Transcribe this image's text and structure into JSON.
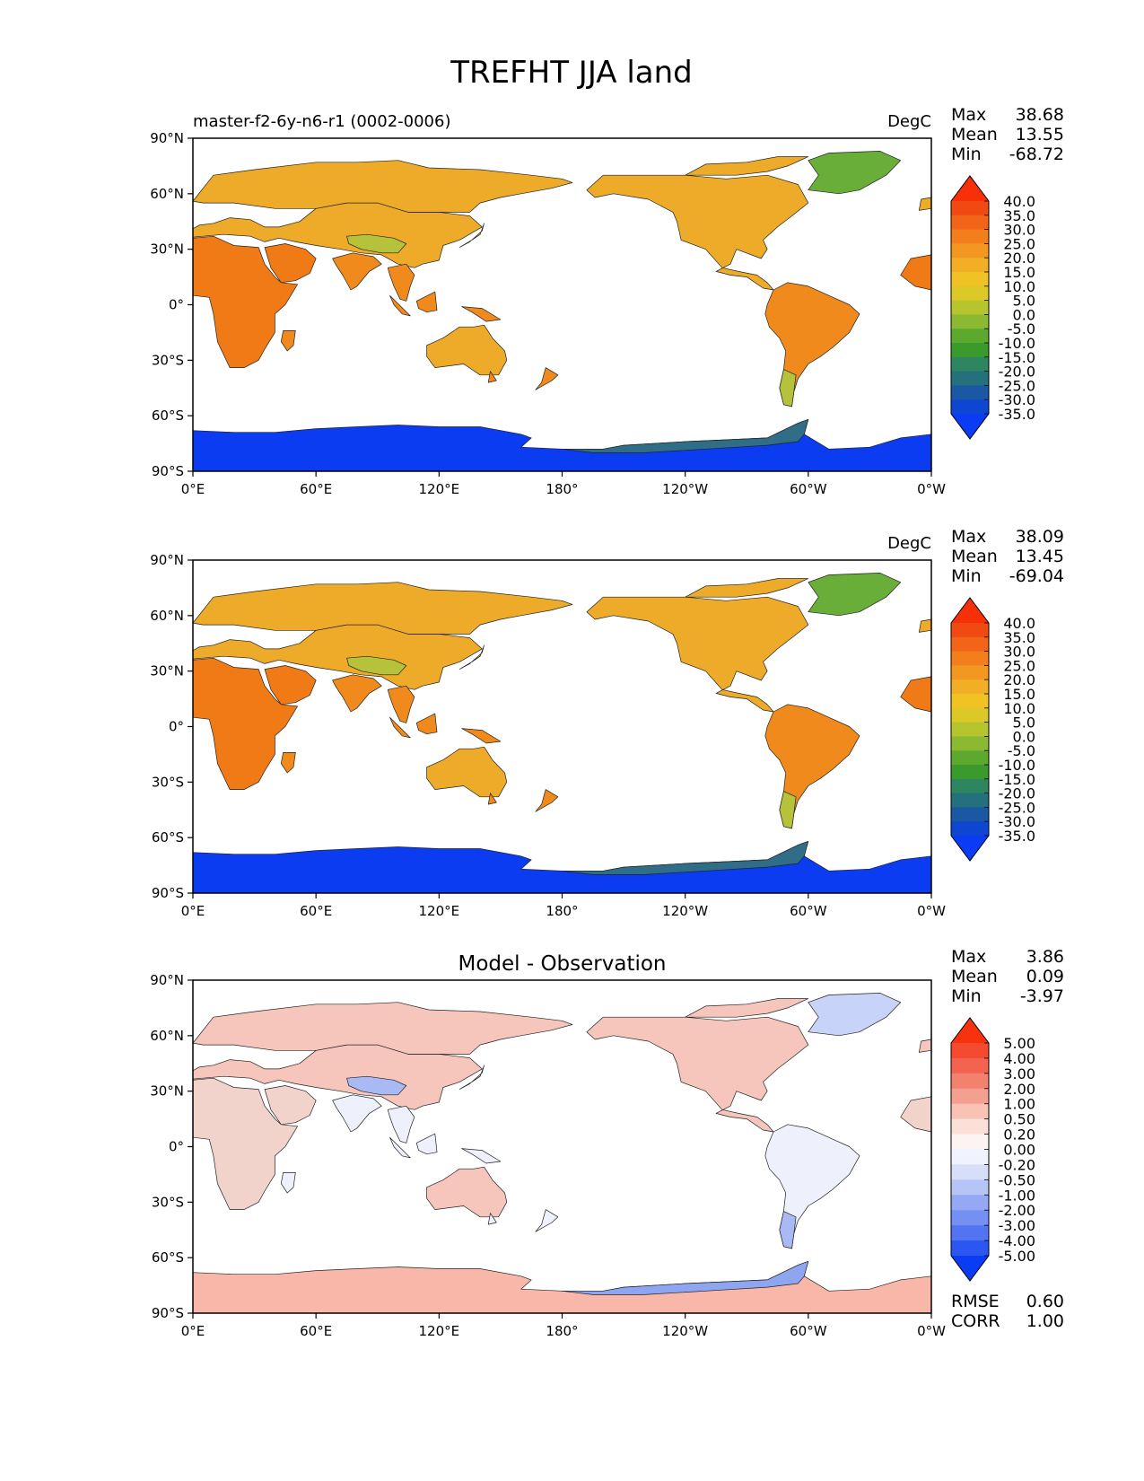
{
  "figure": {
    "title": "TREFHT JJA land"
  },
  "axis_labels": {
    "lat": [
      "90°N",
      "60°N",
      "30°N",
      "0°",
      "30°S",
      "60°S",
      "90°S"
    ],
    "lon": [
      "0°E",
      "60°E",
      "120°E",
      "180°",
      "120°W",
      "60°W",
      "0°W"
    ]
  },
  "panels": [
    {
      "left_title": "master-f2-6y-n6-r1 (0002-0006)",
      "center_title": "",
      "units": "DegC",
      "stats": [
        {
          "label": "Max",
          "value": "38.68"
        },
        {
          "label": "Mean",
          "value": "13.55"
        },
        {
          "label": "Min",
          "value": "-68.72"
        }
      ],
      "colorbar": "abs",
      "land_colors": {
        "nh": "#eeab2a",
        "tropic": "#f08a1c",
        "desert": "#f07a16",
        "plateau": "#b5c23a",
        "greenland": "#6aae3a",
        "antarctic": "#0b3cf2",
        "antarctic_edge": "#2f6e86"
      }
    },
    {
      "left_title": "",
      "center_title": "",
      "units": "DegC",
      "stats": [
        {
          "label": "Max",
          "value": "38.09"
        },
        {
          "label": "Mean",
          "value": "13.45"
        },
        {
          "label": "Min",
          "value": "-69.04"
        }
      ],
      "colorbar": "abs",
      "land_colors": {
        "nh": "#eeab2a",
        "tropic": "#f08a1c",
        "desert": "#f07a16",
        "plateau": "#b5c23a",
        "greenland": "#6aae3a",
        "antarctic": "#0b3cf2",
        "antarctic_edge": "#2f6e86"
      }
    },
    {
      "left_title": "",
      "center_title": "Model - Observation",
      "units": "",
      "stats": [
        {
          "label": "Max",
          "value": "3.86"
        },
        {
          "label": "Mean",
          "value": "0.09"
        },
        {
          "label": "Min",
          "value": "-3.97"
        }
      ],
      "colorbar": "diff",
      "metrics": [
        {
          "label": "RMSE",
          "value": "0.60"
        },
        {
          "label": "CORR",
          "value": "1.00"
        }
      ],
      "land_colors": {
        "nh": "#f6c6bd",
        "tropic": "#eef0fb",
        "desert": "#f2d3cc",
        "plateau": "#a9b9f4",
        "greenland": "#c7d3f8",
        "antarctic": "#f8b7a8",
        "antarctic_edge": "#8ea6f2"
      }
    }
  ],
  "colorbars": {
    "abs": {
      "labels": [
        "40.0",
        "35.0",
        "30.0",
        "25.0",
        "20.0",
        "15.0",
        "10.0",
        "5.0",
        "0.0",
        "-5.0",
        "-10.0",
        "-15.0",
        "-20.0",
        "-25.0",
        "-30.0",
        "-35.0"
      ],
      "colors": [
        "#f8300a",
        "#f04a12",
        "#f26418",
        "#f27e1c",
        "#f29820",
        "#f2ae24",
        "#f1c224",
        "#dcc928",
        "#b6c42e",
        "#8bb932",
        "#5da92e",
        "#3b9a2c",
        "#2e8660",
        "#24707c",
        "#1a58a4",
        "#0e46d2",
        "#0a3cf5"
      ]
    },
    "diff": {
      "labels": [
        "5.00",
        "4.00",
        "3.00",
        "2.00",
        "1.00",
        "0.50",
        "0.20",
        "0.00",
        "-0.20",
        "-0.50",
        "-1.00",
        "-2.00",
        "-3.00",
        "-4.00",
        "-5.00"
      ],
      "colors": [
        "#f8320c",
        "#f44a30",
        "#f26450",
        "#f2826e",
        "#f4a090",
        "#f8c2b4",
        "#fbe0d8",
        "#fbf4f2",
        "#f0f2fd",
        "#d6def9",
        "#b6c4f6",
        "#94a8f4",
        "#7490f2",
        "#5274f2",
        "#2c56f2",
        "#0a3cf5"
      ]
    }
  },
  "chart_data": [
    {
      "type": "heatmap",
      "title": "TREFHT JJA land",
      "subtitle": "master-f2-6y-n6-r1 (0002-0006)",
      "units": "DegC",
      "lon_ticks": [
        "0°E",
        "60°E",
        "120°E",
        "180°",
        "120°W",
        "60°W",
        "0°W"
      ],
      "lat_ticks": [
        "90°N",
        "60°N",
        "30°N",
        "0°",
        "30°S",
        "60°S",
        "90°S"
      ],
      "stats": {
        "max": 38.68,
        "mean": 13.55,
        "min": -68.72
      },
      "levels": [
        -35,
        -30,
        -25,
        -20,
        -15,
        -10,
        -5,
        0,
        5,
        10,
        15,
        20,
        25,
        30,
        35,
        40
      ]
    },
    {
      "type": "heatmap",
      "units": "DegC",
      "lon_ticks": [
        "0°E",
        "60°E",
        "120°E",
        "180°",
        "120°W",
        "60°W",
        "0°W"
      ],
      "lat_ticks": [
        "90°N",
        "60°N",
        "30°N",
        "0°",
        "30°S",
        "60°S",
        "90°S"
      ],
      "stats": {
        "max": 38.09,
        "mean": 13.45,
        "min": -69.04
      },
      "levels": [
        -35,
        -30,
        -25,
        -20,
        -15,
        -10,
        -5,
        0,
        5,
        10,
        15,
        20,
        25,
        30,
        35,
        40
      ]
    },
    {
      "type": "heatmap",
      "title": "Model - Observation",
      "lon_ticks": [
        "0°E",
        "60°E",
        "120°E",
        "180°",
        "120°W",
        "60°W",
        "0°W"
      ],
      "lat_ticks": [
        "90°N",
        "60°N",
        "30°N",
        "0°",
        "30°S",
        "60°S",
        "90°S"
      ],
      "stats": {
        "max": 3.86,
        "mean": 0.09,
        "min": -3.97
      },
      "metrics": {
        "rmse": 0.6,
        "corr": 1.0
      },
      "levels": [
        -5,
        -4,
        -3,
        -2,
        -1,
        -0.5,
        -0.2,
        0,
        0.2,
        0.5,
        1,
        2,
        3,
        4,
        5
      ]
    }
  ]
}
